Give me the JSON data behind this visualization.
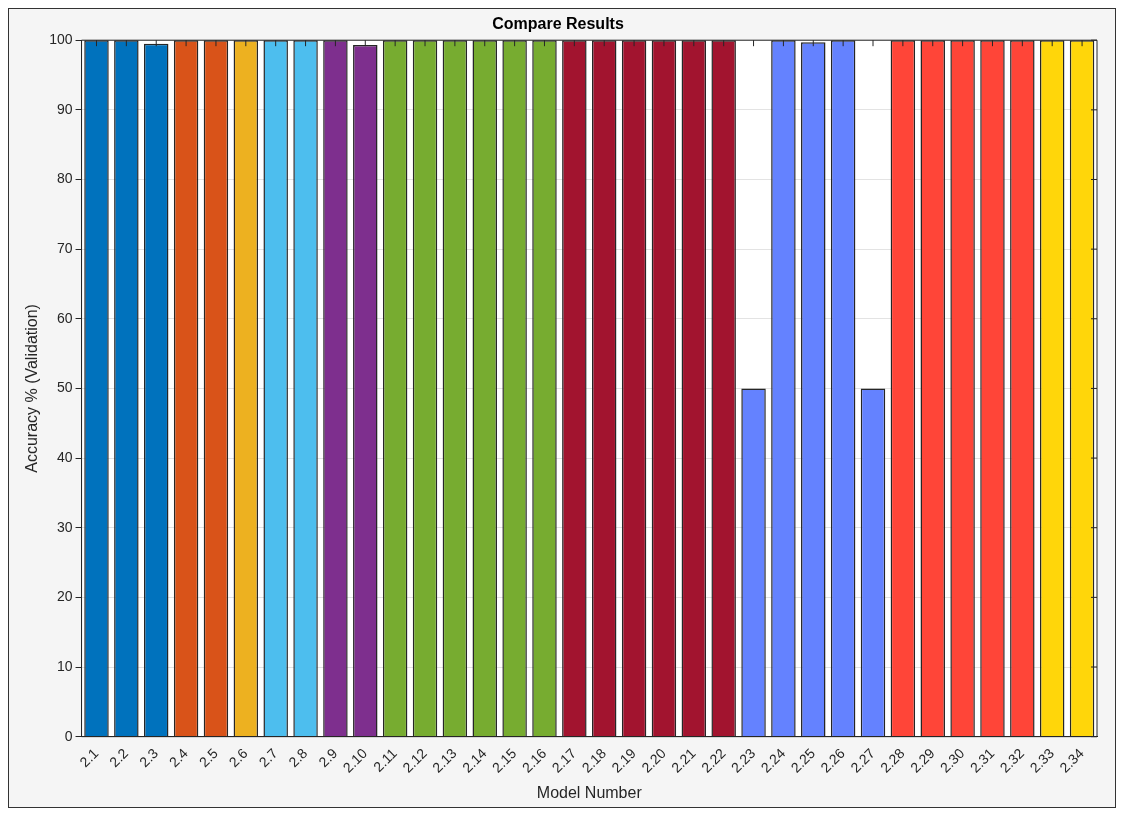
{
  "chart_data": {
    "type": "bar",
    "title": "Compare Results",
    "xlabel": "Model Number",
    "ylabel": "Accuracy % (Validation)",
    "categories": [
      "2.1",
      "2.2",
      "2.3",
      "2.4",
      "2.5",
      "2.6",
      "2.7",
      "2.8",
      "2.9",
      "2.10",
      "2.11",
      "2.12",
      "2.13",
      "2.14",
      "2.15",
      "2.16",
      "2.17",
      "2.18",
      "2.19",
      "2.20",
      "2.21",
      "2.22",
      "2.23",
      "2.24",
      "2.25",
      "2.26",
      "2.27",
      "2.28",
      "2.29",
      "2.30",
      "2.31",
      "2.32",
      "2.33",
      "2.34"
    ],
    "values": [
      100,
      100,
      99.5,
      100,
      100,
      100,
      100,
      100,
      100,
      99.3,
      100,
      100,
      100,
      100,
      100,
      100,
      100,
      100,
      100,
      100,
      100,
      100,
      50,
      100,
      99.7,
      100,
      50,
      100,
      100,
      100,
      100,
      100,
      100,
      100
    ],
    "colors": [
      "#0072bd",
      "#0072bd",
      "#0072bd",
      "#d95319",
      "#d95319",
      "#edb120",
      "#4dbeee",
      "#4dbeee",
      "#7e2f8e",
      "#7e2f8e",
      "#77ac30",
      "#77ac30",
      "#77ac30",
      "#77ac30",
      "#77ac30",
      "#77ac30",
      "#a2142f",
      "#a2142f",
      "#a2142f",
      "#a2142f",
      "#a2142f",
      "#a2142f",
      "#6482ff",
      "#6482ff",
      "#6482ff",
      "#6482ff",
      "#6482ff",
      "#ff4538",
      "#ff4538",
      "#ff4538",
      "#ff4538",
      "#ff4538",
      "#ffd60a",
      "#ffd60a"
    ],
    "ylim": [
      0,
      100
    ],
    "yticks": [
      0,
      10,
      20,
      30,
      40,
      50,
      60,
      70,
      80,
      90,
      100
    ],
    "grid": "y"
  }
}
